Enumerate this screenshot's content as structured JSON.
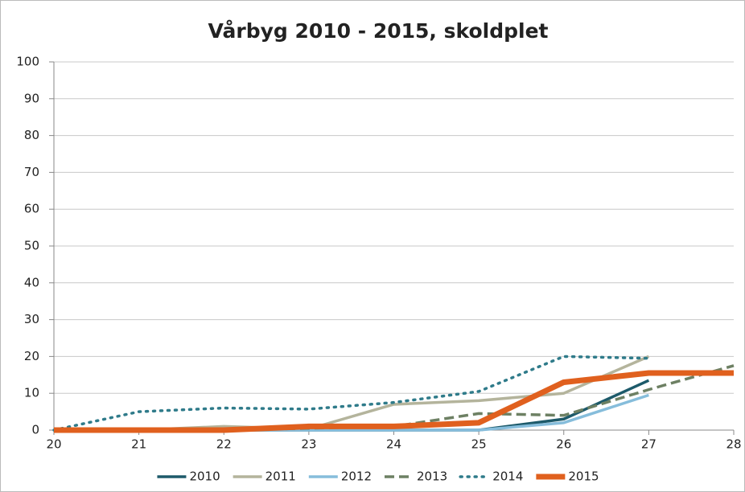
{
  "chart_data": {
    "type": "line",
    "title": "Vårbyg 2010 - 2015, skoldplet",
    "x": [
      20,
      21,
      22,
      23,
      24,
      25,
      26,
      27,
      28
    ],
    "series": [
      {
        "name": "2010",
        "color": "#1d5a6a",
        "style": "solid",
        "values": [
          0,
          0,
          0,
          0,
          0,
          0,
          3,
          13.5,
          null
        ]
      },
      {
        "name": "2011",
        "color": "#b4b49c",
        "style": "solid",
        "values": [
          0,
          0,
          1,
          0.3,
          7,
          8,
          10,
          20,
          null
        ]
      },
      {
        "name": "2012",
        "color": "#86bddb",
        "style": "solid",
        "values": [
          0,
          0,
          0,
          0,
          0,
          0,
          2,
          9.5,
          null
        ]
      },
      {
        "name": "2013",
        "color": "#6d8063",
        "style": "dashed",
        "values": [
          0,
          0,
          0,
          0.5,
          1,
          4.5,
          4,
          11,
          17.5
        ]
      },
      {
        "name": "2014",
        "color": "#2f7b8a",
        "style": "dotted",
        "values": [
          0,
          5,
          6,
          5.7,
          7.5,
          10.5,
          20,
          19.5,
          null
        ]
      },
      {
        "name": "2015",
        "color": "#e0601e",
        "style": "bold",
        "values": [
          0,
          0,
          0,
          1,
          1,
          2,
          13,
          15.5,
          15.5
        ]
      }
    ],
    "xlim": [
      20,
      28
    ],
    "xticks": [
      20,
      21,
      22,
      23,
      24,
      25,
      26,
      27,
      28
    ],
    "ylim": [
      0,
      100
    ],
    "yticks": [
      0,
      10,
      20,
      30,
      40,
      50,
      60,
      70,
      80,
      90,
      100
    ],
    "grid": true,
    "legend": "bottom"
  }
}
